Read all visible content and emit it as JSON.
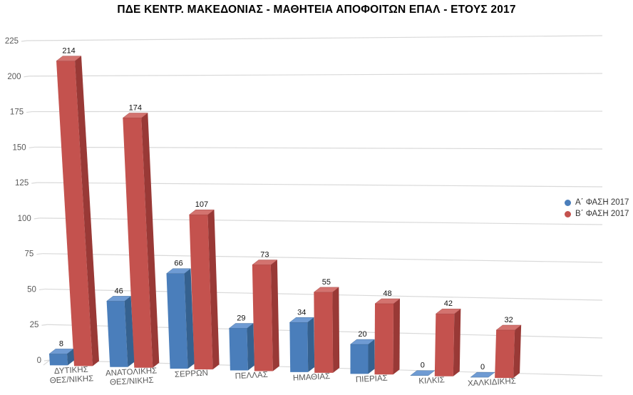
{
  "chart_data": {
    "type": "bar",
    "style": "3d-perspective",
    "title": "ΠΔΕ ΚΕΝΤΡ. ΜΑΚΕΔΟΝΙΑΣ - ΜΑΘΗΤΕΙΑ ΑΠΟΦΟΙΤΩΝ ΕΠΑΛ - ΕΤΟΥΣ 2017",
    "categories": [
      "ΔΥΤΙΚΗΣ ΘΕΣ/ΝΙΚΗΣ",
      "ΑΝΑΤΟΛΙΚΗΣ ΘΕΣ/ΝΙΚΗΣ",
      "ΣΕΡΡΩΝ",
      "ΠΕΛΛΑΣ",
      "ΗΜΑΘΙΑΣ",
      "ΠΙΕΡΙΑΣ",
      "ΚΙΛΚΙΣ",
      "ΧΑΛΚΙΔΙΚΗΣ"
    ],
    "series": [
      {
        "name": "Α΄ ΦΑΣΗ 2017",
        "values": [
          8,
          46,
          66,
          29,
          34,
          20,
          0,
          0
        ],
        "color": "#4a7ebb",
        "color_top": "#6f9bd3",
        "color_side": "#35618f"
      },
      {
        "name": "Β΄ ΦΑΣΗ 2017",
        "values": [
          214,
          174,
          107,
          73,
          55,
          48,
          42,
          32
        ],
        "color": "#c4524e",
        "color_top": "#d3736f",
        "color_side": "#993936"
      }
    ],
    "y_ticks": [
      0,
      25,
      50,
      75,
      100,
      125,
      150,
      175,
      200,
      225
    ],
    "ylim": [
      0,
      225
    ],
    "value_labels": true,
    "grid": true,
    "legend_position": "right",
    "colors": {
      "grid": "#d9d9d9",
      "axis_text": "#595959",
      "value_label_text": "#111111",
      "title_text": "#000000",
      "background": "#ffffff",
      "legend_text": "#333333"
    }
  }
}
